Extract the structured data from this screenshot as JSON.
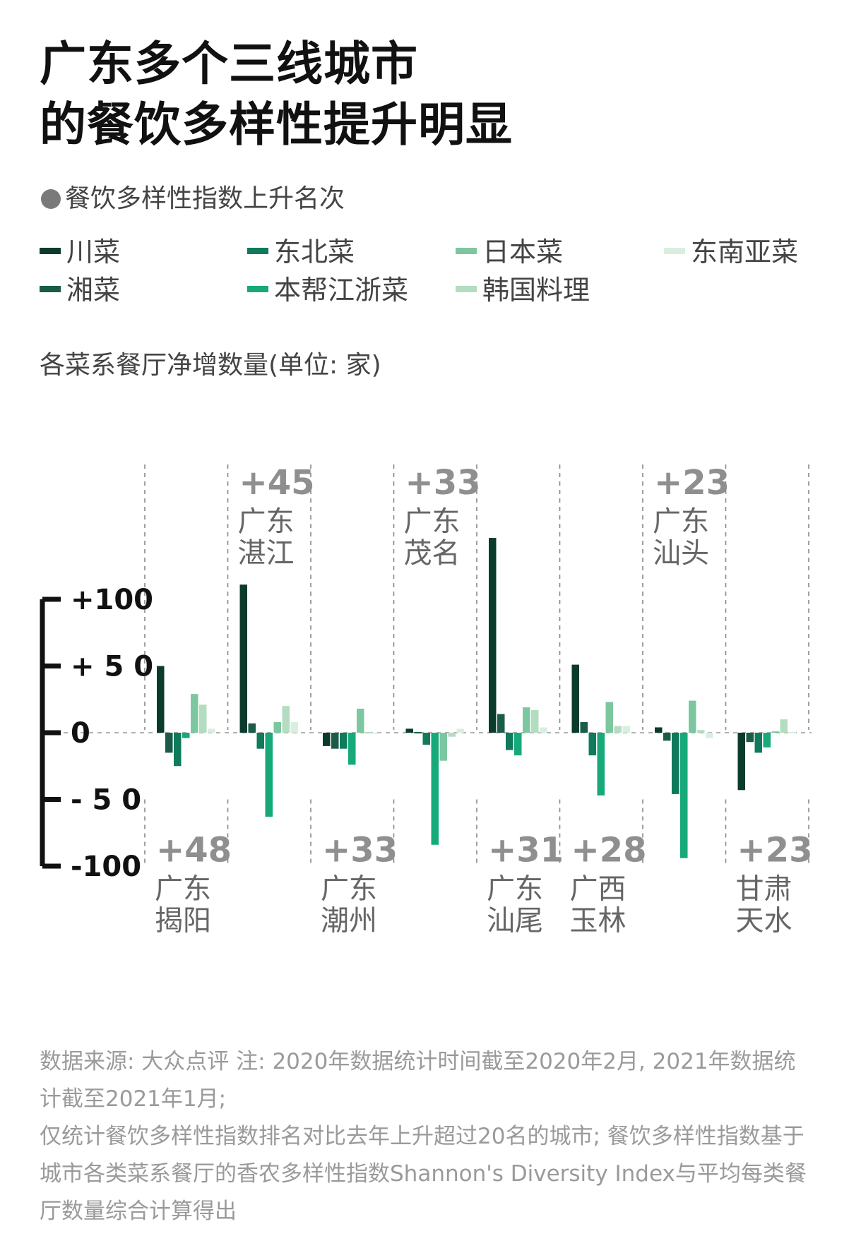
{
  "title_lines": [
    "广东多个三线城市",
    "的餐饮多样性提升明显"
  ],
  "subtitle": "餐饮多样性指数上升名次",
  "legend": [
    {
      "label": "川菜",
      "color": "#0b3b2c"
    },
    {
      "label": "东北菜",
      "color": "#0f7a5c"
    },
    {
      "label": "日本菜",
      "color": "#7cc79f"
    },
    {
      "label": "东南亚菜",
      "color": "#d9eedf"
    },
    {
      "label": "湘菜",
      "color": "#1a5c48"
    },
    {
      "label": "本帮江浙菜",
      "color": "#16a97a"
    },
    {
      "label": "韩国料理",
      "color": "#b3dcc0"
    }
  ],
  "footer": {
    "line1": "数据来源: 大众点评  注: 2020年数据统计时间截至2020年2月, 2021年数据统计截至2021年1月;",
    "line2": "仅统计餐饮多样性指数排名对比去年上升超过20名的城市; 餐饮多样性指数基于城市各类菜系餐厅的香农多样性指数Shannon's Diversity Index与平均每类餐厅数量综合计算得出"
  },
  "chart_data": {
    "type": "bar",
    "ylabel": "各菜系餐厅净增数量(单位: 家)",
    "ylim": [
      -100,
      100
    ],
    "yticks": [
      {
        "value": 100,
        "label": "+100"
      },
      {
        "value": 50,
        "label": "+ 5 0"
      },
      {
        "value": 0,
        "label": "0"
      },
      {
        "value": -50,
        "label": "- 5 0"
      },
      {
        "value": -100,
        "label": "-100"
      }
    ],
    "series_names": [
      "川菜",
      "湘菜",
      "东北菜",
      "本帮江浙菜",
      "日本菜",
      "韩国料理",
      "东南亚菜"
    ],
    "series_colors": [
      "#0b3b2c",
      "#1a5c48",
      "#0f7a5c",
      "#16a97a",
      "#7cc79f",
      "#b3dcc0",
      "#d9eedf"
    ],
    "categories": [
      {
        "province": "广东",
        "city": "揭阳",
        "rank_change": "+48",
        "label_pos": "bottom",
        "values": [
          50,
          -15,
          -25,
          -4,
          29,
          21,
          3
        ]
      },
      {
        "province": "广东",
        "city": "湛江",
        "rank_change": "+45",
        "label_pos": "top",
        "values": [
          111,
          7,
          -12,
          -63,
          8,
          20,
          8
        ]
      },
      {
        "province": "广东",
        "city": "潮州",
        "rank_change": "+33",
        "label_pos": "bottom",
        "values": [
          -10,
          -12,
          -12,
          -24,
          18,
          0,
          -1
        ]
      },
      {
        "province": "广东",
        "city": "茂名",
        "rank_change": "+33",
        "label_pos": "top",
        "values": [
          3,
          0,
          -9,
          -84,
          -21,
          -3,
          3
        ]
      },
      {
        "province": "广东",
        "city": "汕尾",
        "rank_change": "+31",
        "label_pos": "bottom",
        "values": [
          146,
          14,
          -13,
          -17,
          19,
          17,
          4
        ]
      },
      {
        "province": "广西",
        "city": "玉林",
        "rank_change": "+28",
        "label_pos": "bottom",
        "values": [
          51,
          8,
          -17,
          -47,
          23,
          5,
          5
        ]
      },
      {
        "province": "广东",
        "city": "汕头",
        "rank_change": "+23",
        "label_pos": "top",
        "values": [
          4,
          -6,
          -46,
          -94,
          24,
          2,
          -4
        ]
      },
      {
        "province": "甘肃",
        "city": "天水",
        "rank_change": "+23",
        "label_pos": "bottom",
        "values": [
          -43,
          -7,
          -15,
          -11,
          1,
          10,
          0
        ]
      }
    ]
  }
}
